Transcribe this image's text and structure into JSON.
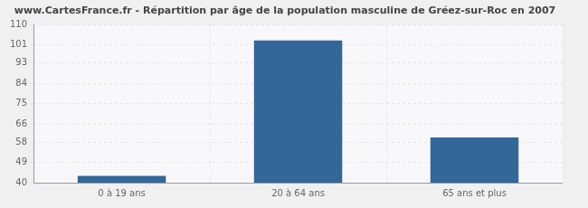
{
  "chart_data": {
    "type": "bar",
    "title": "www.CartesFrance.fr - Répartition par âge de la population masculine de Gréez-sur-Roc en 2007",
    "categories": [
      "0 à 19 ans",
      "20 à 64 ans",
      "65 ans et plus"
    ],
    "values": [
      43,
      103,
      60
    ],
    "color": "#336699",
    "ylim": [
      40,
      110
    ],
    "yticks": [
      40,
      49,
      58,
      66,
      75,
      84,
      93,
      101,
      110
    ],
    "grid": true
  }
}
